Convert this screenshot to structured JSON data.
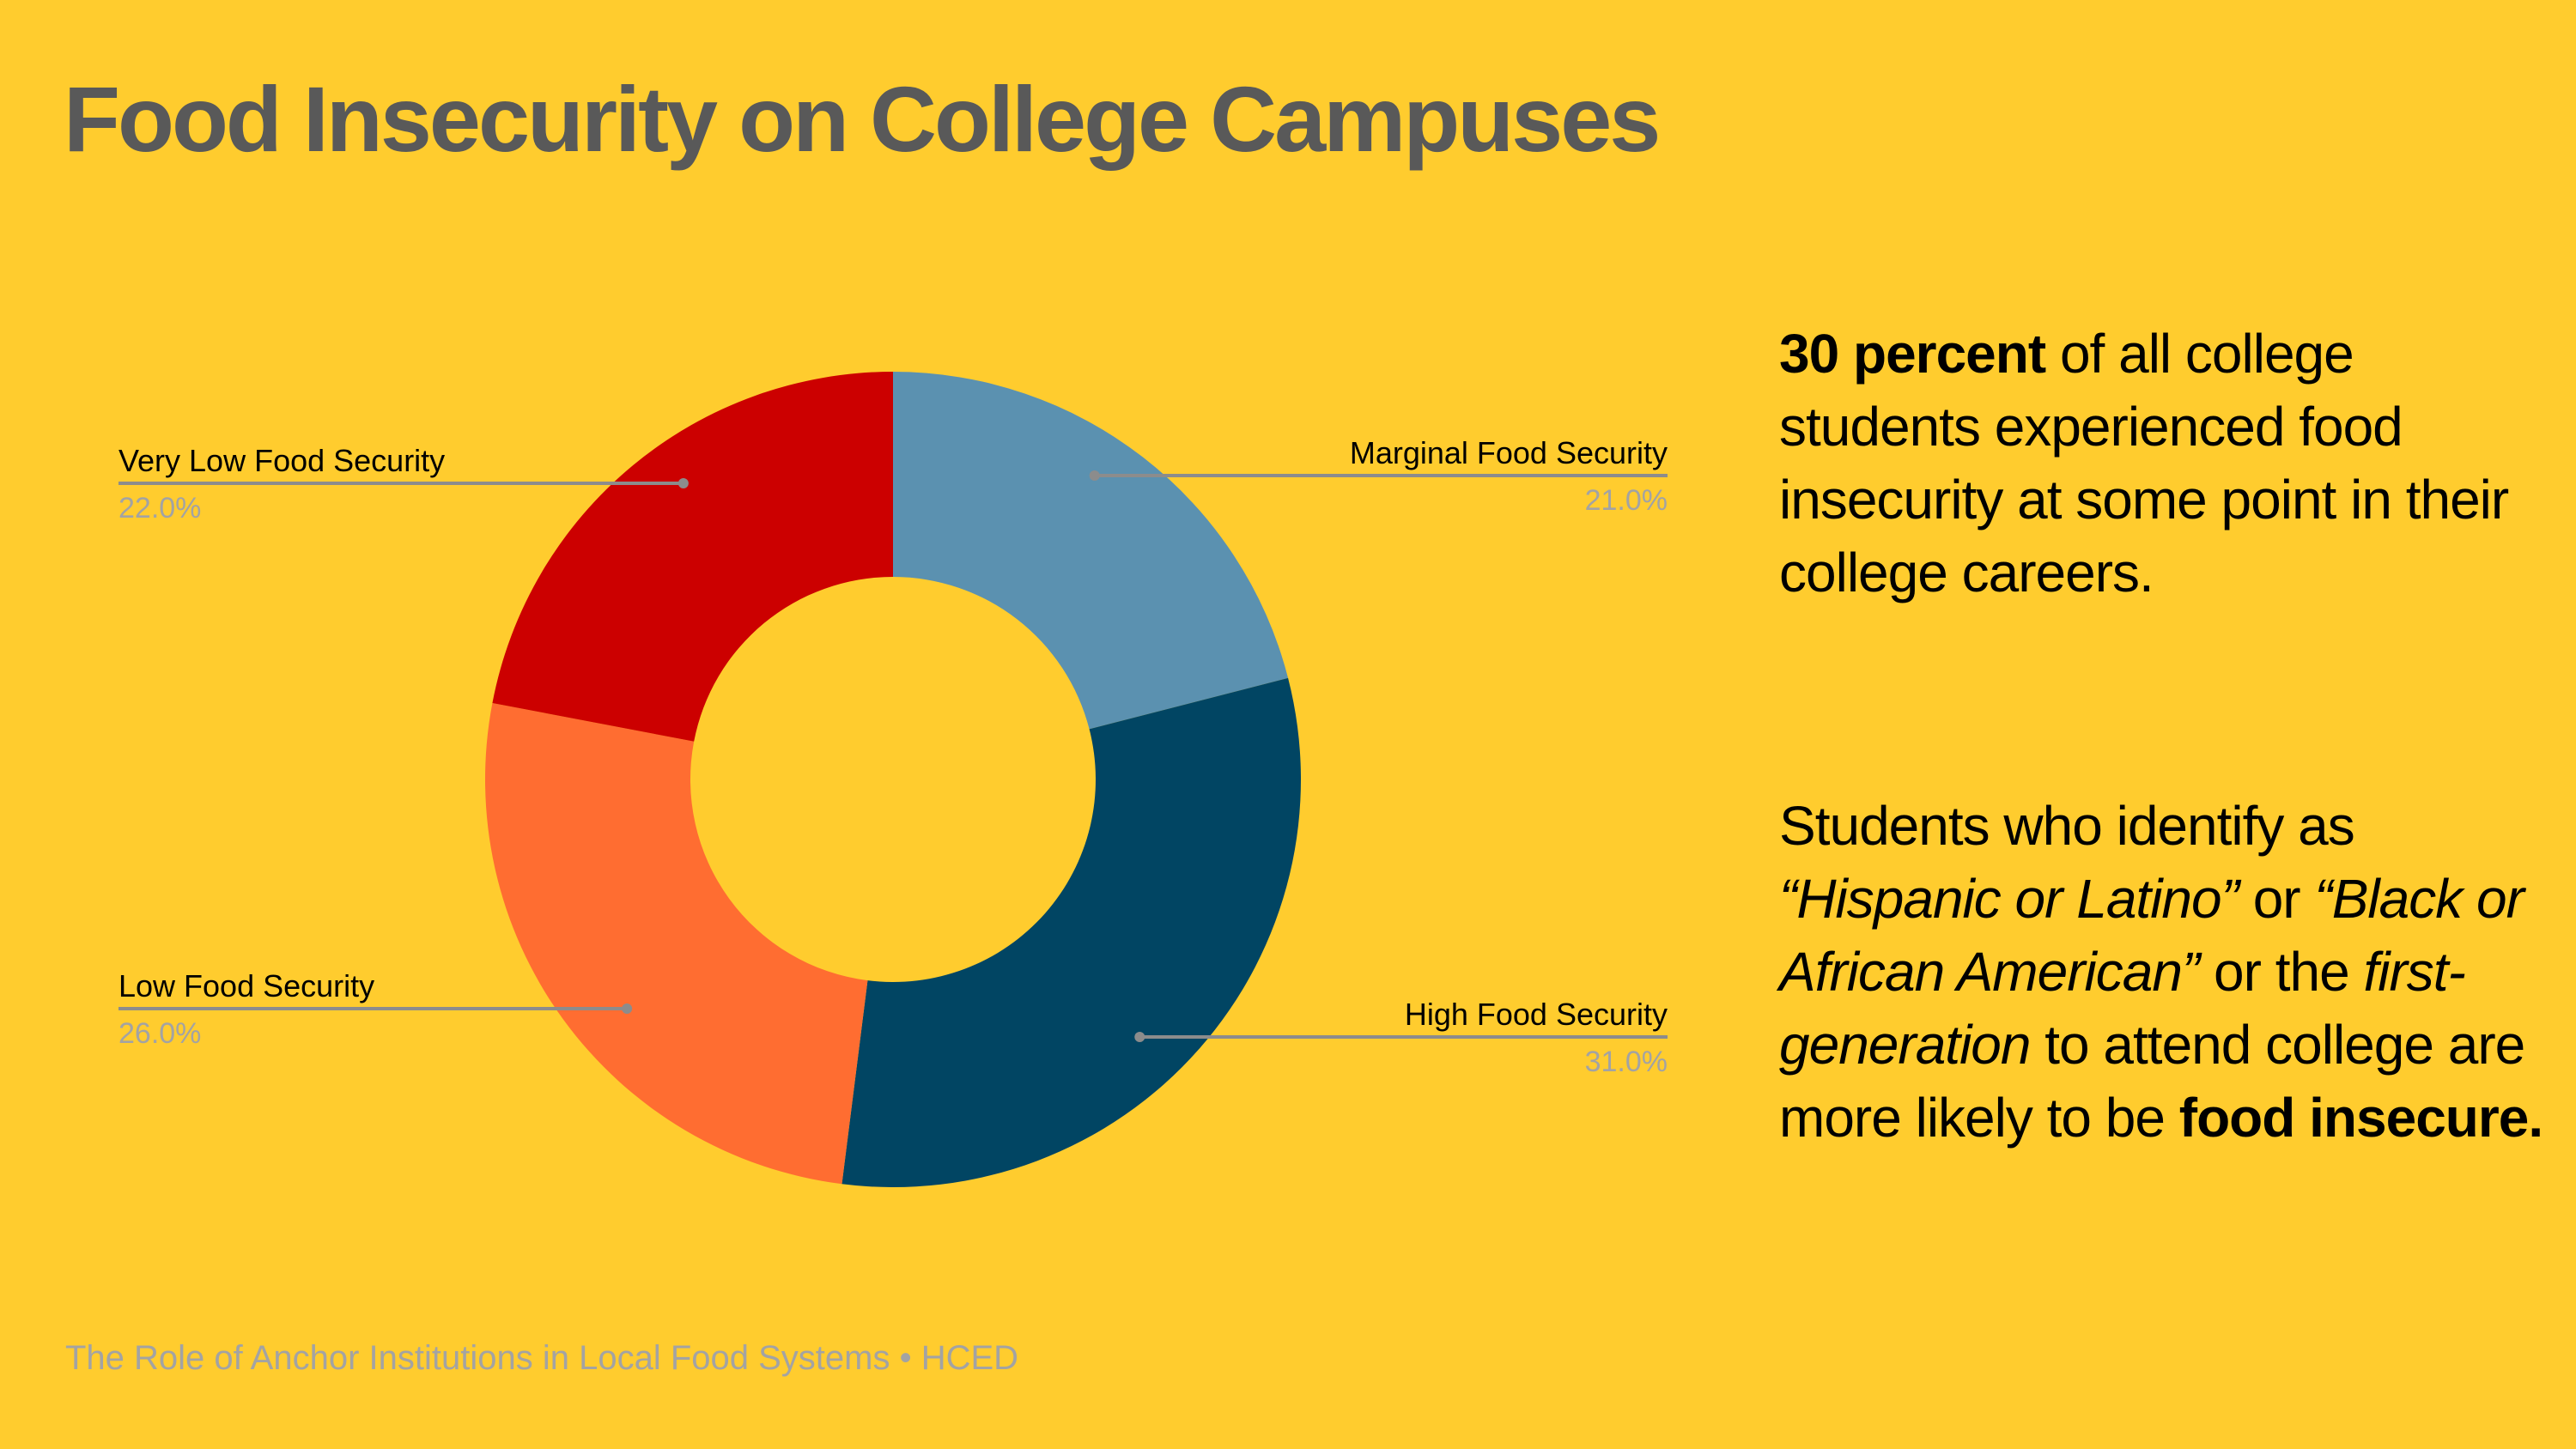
{
  "title": "Food Insecurity on College Campuses",
  "chart_data": {
    "type": "pie",
    "donut": true,
    "categories": [
      "Marginal Food Security",
      "High Food Security",
      "Low Food Security",
      "Very Low Food Security"
    ],
    "values": [
      21.0,
      31.0,
      26.0,
      22.0
    ],
    "labels": [
      "21.0%",
      "31.0%",
      "26.0%",
      "22.0%"
    ],
    "colors": [
      "#5B91B0",
      "#014563",
      "#FF6D31",
      "#CC0000"
    ],
    "legend": "callout labels",
    "center_color": "#FFCC2E"
  },
  "paragraph1": {
    "bold": "30 percent",
    "rest": " of all college students experienced food insecurity at some point in their college careers."
  },
  "paragraph2": {
    "t1": "Students who identify as ",
    "i1": "“Hispanic or Latino”",
    "t2": " or ",
    "i2": "“Black or African American”",
    "t3": " or the ",
    "i3": "first-generation",
    "t4": " to attend college are more likely to be ",
    "b1": "food insecure."
  },
  "footer": "The Role of Anchor Institutions in Local Food Systems • HCED",
  "colors": {
    "background": "#FFCC2E",
    "title": "#595959",
    "footer": "#A3A3A3"
  }
}
